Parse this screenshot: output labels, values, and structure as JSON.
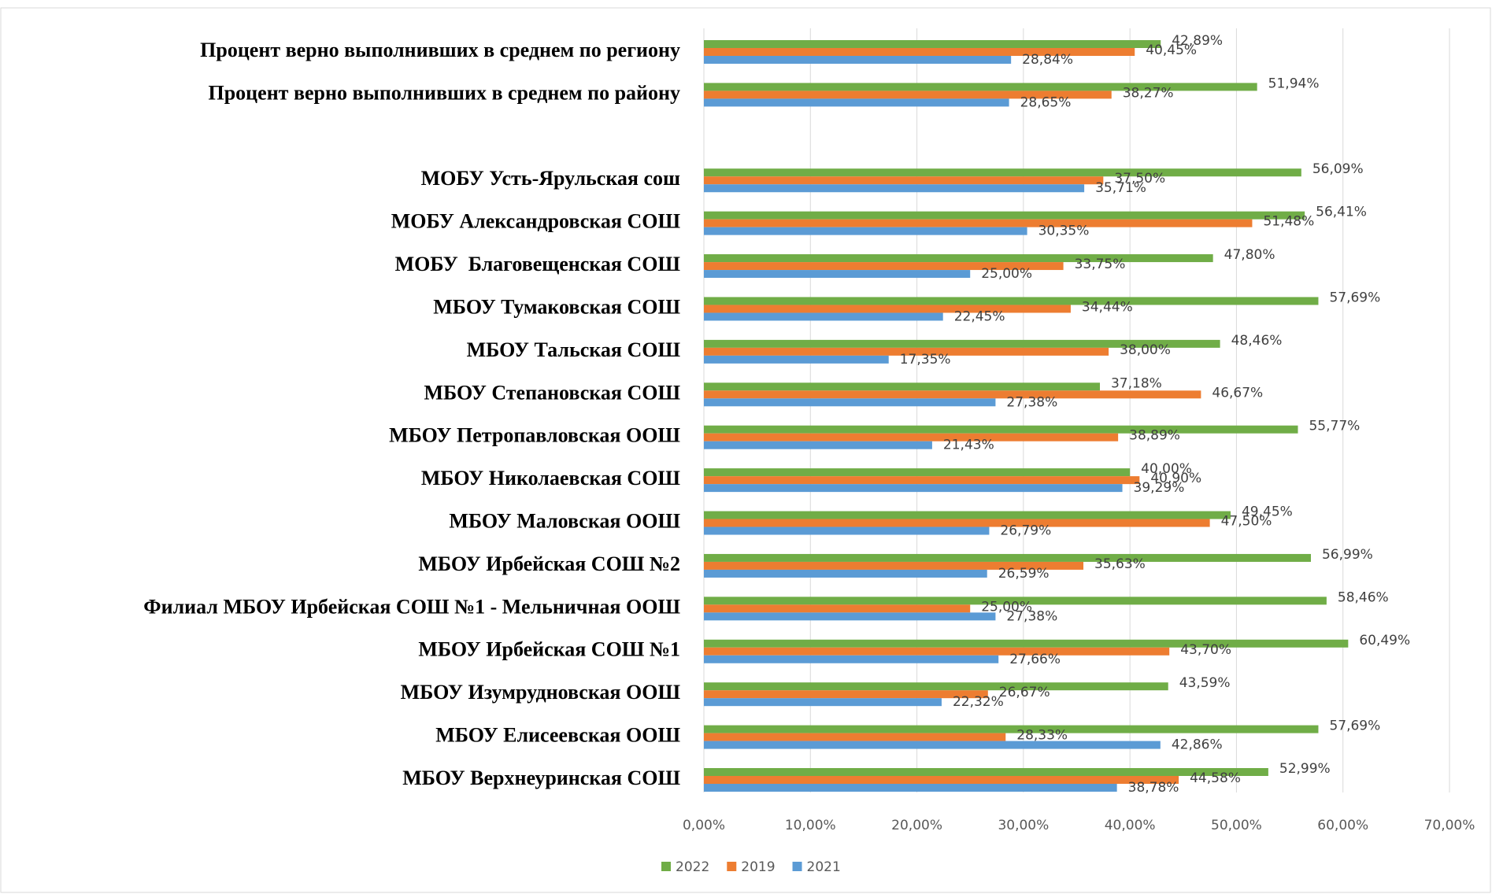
{
  "chart_data": {
    "type": "barh",
    "categories": [
      "Процент верно выполнивших в среднем по региону",
      "Процент верно выполнивших в среднем по району",
      null,
      "МОБУ Усть-Ярульская сош",
      "МОБУ Александровская СОШ",
      "МОБУ  Благовещенская СОШ",
      "МБОУ Тумаковская СОШ",
      "МБОУ Тальская СОШ",
      "МБОУ Степановская СОШ",
      "МБОУ Петропавловская ООШ",
      "МБОУ Николаевская СОШ",
      "МБОУ Маловская ООШ",
      "МБОУ Ирбейская СОШ №2",
      "Филиал МБОУ Ирбейская СОШ №1 - Мельничная ООШ",
      "МБОУ Ирбейская СОШ №1",
      "МБОУ Изумрудновская ООШ",
      "МБОУ Елисеевская ООШ",
      "МБОУ Верхнеуринская СОШ"
    ],
    "series": [
      {
        "name": "2022",
        "color": "#70ad47",
        "values": [
          42.89,
          51.94,
          null,
          56.09,
          56.41,
          47.8,
          57.69,
          48.46,
          37.18,
          55.77,
          40.0,
          49.45,
          56.99,
          58.46,
          60.49,
          43.59,
          57.69,
          52.99
        ],
        "value_labels": [
          "42,89%",
          "51,94%",
          null,
          "56,09%",
          "56,41%",
          "47,80%",
          "57,69%",
          "48,46%",
          "37,18%",
          "55,77%",
          "40,00%",
          "49,45%",
          "56,99%",
          "58,46%",
          "60,49%",
          "43,59%",
          "57,69%",
          "52,99%"
        ]
      },
      {
        "name": "2019",
        "color": "#ed7d31",
        "values": [
          40.45,
          38.27,
          null,
          37.5,
          51.48,
          33.75,
          34.44,
          38.0,
          46.67,
          38.89,
          40.9,
          47.5,
          35.63,
          25.0,
          43.7,
          26.67,
          28.33,
          44.58
        ],
        "value_labels": [
          "40,45%",
          "38,27%",
          null,
          "37,50%",
          "51,48%",
          "33,75%",
          "34,44%",
          "38,00%",
          "46,67%",
          "38,89%",
          "40,90%",
          "47,50%",
          "35,63%",
          "25,00%",
          "43,70%",
          "26,67%",
          "28,33%",
          "44,58%"
        ]
      },
      {
        "name": "2021",
        "color": "#5b9bd5",
        "values": [
          28.84,
          28.65,
          null,
          35.71,
          30.35,
          25.0,
          22.45,
          17.35,
          27.38,
          21.43,
          39.29,
          26.79,
          26.59,
          27.38,
          27.66,
          22.32,
          42.86,
          38.78
        ],
        "value_labels": [
          "28,84%",
          "28,65%",
          null,
          "35,71%",
          "30,35%",
          "25,00%",
          "22,45%",
          "17,35%",
          "27,38%",
          "21,43%",
          "39,29%",
          "26,79%",
          "26,59%",
          "27,38%",
          "27,66%",
          "22,32%",
          "42,86%",
          "38,78%"
        ]
      }
    ],
    "xlim": [
      0,
      70
    ],
    "xticks": [
      {
        "value": 0,
        "label": "0,00%"
      },
      {
        "value": 10,
        "label": "10,00%"
      },
      {
        "value": 20,
        "label": "20,00%"
      },
      {
        "value": 30,
        "label": "30,00%"
      },
      {
        "value": 40,
        "label": "40,00%"
      },
      {
        "value": 50,
        "label": "50,00%"
      },
      {
        "value": 60,
        "label": "60,00%"
      },
      {
        "value": 70,
        "label": "70,00%"
      }
    ],
    "grid": true,
    "legend": "bottom"
  }
}
